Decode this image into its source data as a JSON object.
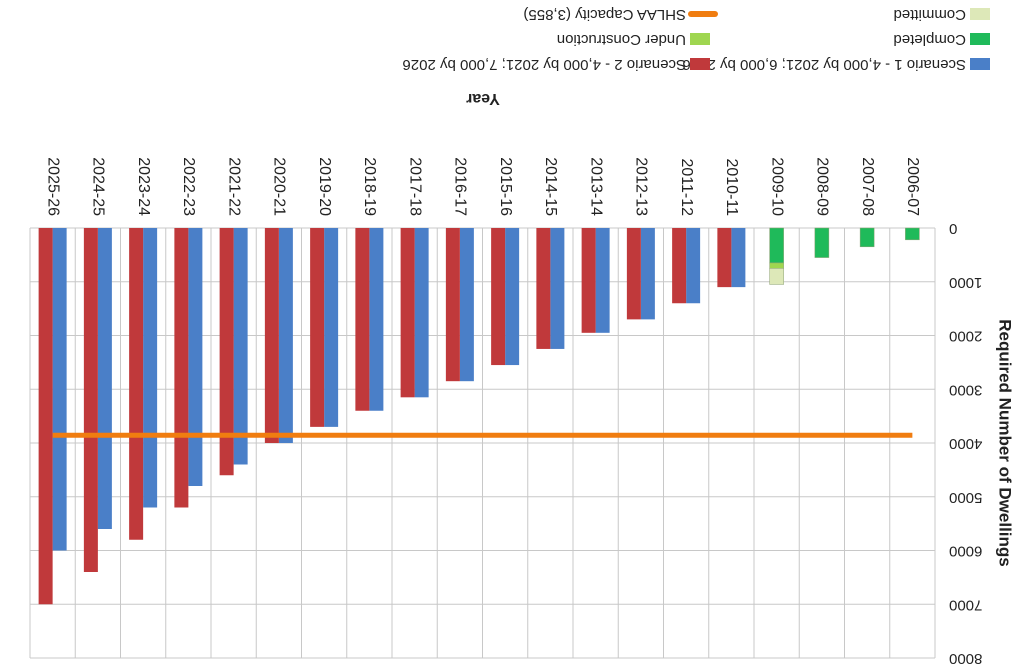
{
  "chart_data": {
    "type": "bar",
    "y_label": "Required Number of Dwellings",
    "x_label": "Year",
    "categories": [
      "2006-07",
      "2007-08",
      "2008-09",
      "2009-10",
      "2010-11",
      "2011-12",
      "2012-13",
      "2013-14",
      "2014-15",
      "2015-16",
      "2016-17",
      "2017-18",
      "2018-19",
      "2019-20",
      "2020-21",
      "2021-22",
      "2022-23",
      "2023-24",
      "2024-25",
      "2025-26"
    ],
    "series": [
      {
        "name": "Scenario 1 - 4,000 by 2021; 6,000 by 2026",
        "color": "#4a7fc8",
        "kind": "bar",
        "values": [
          null,
          null,
          null,
          null,
          1100,
          1400,
          1700,
          1950,
          2250,
          2550,
          2850,
          3150,
          3400,
          3700,
          4000,
          4400,
          4800,
          5200,
          5600,
          6000
        ]
      },
      {
        "name": "Scenario 2 - 4,000 by 2021; 7,000 by 2026",
        "color": "#c0393b",
        "kind": "bar",
        "values": [
          null,
          null,
          null,
          null,
          1100,
          1400,
          1700,
          1950,
          2250,
          2550,
          2850,
          3150,
          3400,
          3700,
          4000,
          4600,
          5200,
          5800,
          6400,
          7000
        ]
      },
      {
        "name": "Completed",
        "color": "#1fba5a",
        "kind": "stack",
        "values": [
          220,
          350,
          550,
          650,
          null,
          null,
          null,
          null,
          null,
          null,
          null,
          null,
          null,
          null,
          null,
          null,
          null,
          null,
          null,
          null
        ]
      },
      {
        "name": "Under Construction",
        "color": "#9fd650",
        "kind": "stack",
        "values": [
          null,
          null,
          null,
          100,
          null,
          null,
          null,
          null,
          null,
          null,
          null,
          null,
          null,
          null,
          null,
          null,
          null,
          null,
          null,
          null
        ]
      },
      {
        "name": "Committed",
        "color": "#dde8b8",
        "kind": "stack",
        "values": [
          null,
          null,
          null,
          300,
          null,
          null,
          null,
          null,
          null,
          null,
          null,
          null,
          null,
          null,
          null,
          null,
          null,
          null,
          null,
          null
        ]
      },
      {
        "name": "SHLAA Capacity (3,855)",
        "color": "#f07d10",
        "kind": "line",
        "values": [
          3855,
          3855,
          3855,
          3855,
          3855,
          3855,
          3855,
          3855,
          3855,
          3855,
          3855,
          3855,
          3855,
          3855,
          3855,
          3855,
          3855,
          3855,
          3855,
          3855
        ]
      }
    ],
    "ylim": [
      0,
      8000
    ],
    "yticks": [
      0,
      1000,
      2000,
      3000,
      4000,
      5000,
      6000,
      7000,
      8000
    ],
    "grid": true
  }
}
